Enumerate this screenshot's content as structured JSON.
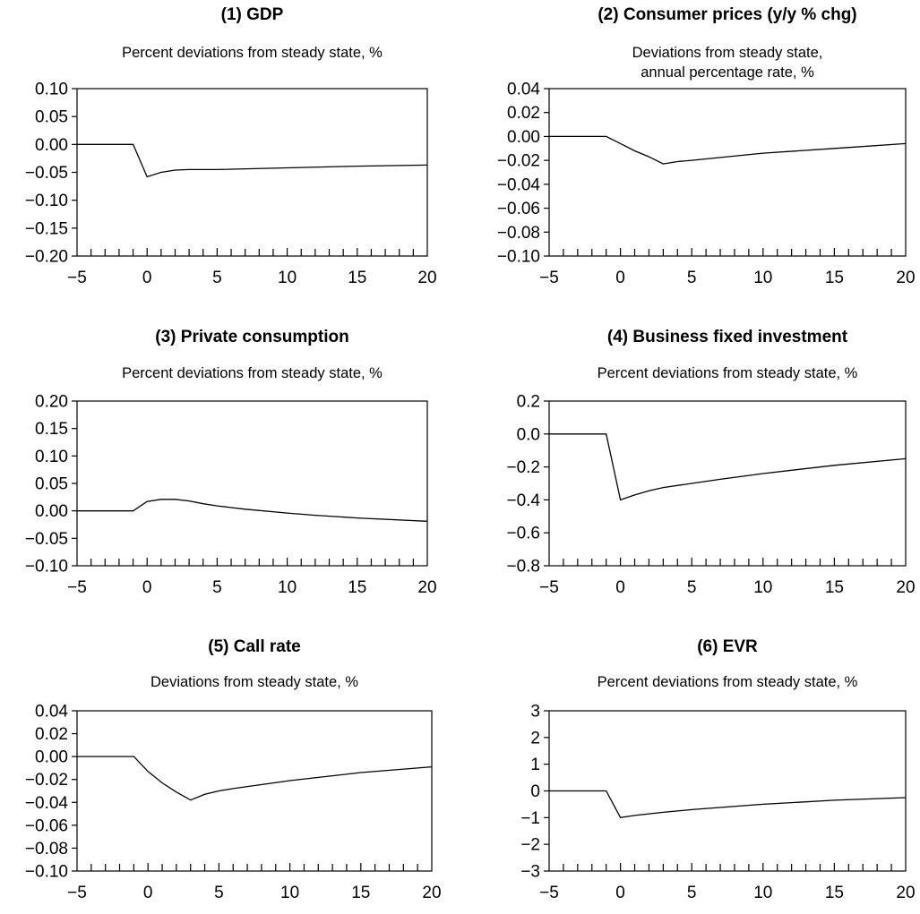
{
  "chart_data": [
    {
      "type": "line",
      "title": "(1) GDP",
      "subtitle": [
        "Percent deviations from steady state, %"
      ],
      "xlim": [
        -5,
        20
      ],
      "ylim": [
        -0.2,
        0.1
      ],
      "xticks": [
        -5,
        0,
        5,
        10,
        15,
        20
      ],
      "xtick_labels": [
        "−5",
        "0",
        "5",
        "10",
        "15",
        "20"
      ],
      "yticks": [
        0.1,
        0.05,
        0.0,
        -0.05,
        -0.1,
        -0.15,
        -0.2
      ],
      "ytick_labels": [
        "0.10",
        "0.05",
        "0.00",
        "−0.05",
        "−0.10",
        "−0.15",
        "−0.20"
      ],
      "x": [
        -5,
        -1,
        0,
        1,
        2,
        3,
        5,
        10,
        15,
        20
      ],
      "y": [
        0,
        0,
        -0.058,
        -0.05,
        -0.046,
        -0.045,
        -0.045,
        -0.042,
        -0.039,
        -0.037
      ]
    },
    {
      "type": "line",
      "title": "(2) Consumer prices (y/y % chg)",
      "subtitle": [
        "Deviations from steady state,",
        "annual percentage rate, %"
      ],
      "xlim": [
        -5,
        20
      ],
      "ylim": [
        -0.1,
        0.04
      ],
      "xticks": [
        -5,
        0,
        5,
        10,
        15,
        20
      ],
      "xtick_labels": [
        "−5",
        "0",
        "5",
        "10",
        "15",
        "20"
      ],
      "yticks": [
        0.04,
        0.02,
        0.0,
        -0.02,
        -0.04,
        -0.06,
        -0.08,
        -0.1
      ],
      "ytick_labels": [
        "0.04",
        "0.02",
        "0.00",
        "−0.02",
        "−0.04",
        "−0.06",
        "−0.08",
        "−0.10"
      ],
      "x": [
        -5,
        -1,
        0,
        1,
        2,
        3,
        4,
        5,
        10,
        15,
        20
      ],
      "y": [
        0,
        0,
        -0.006,
        -0.012,
        -0.017,
        -0.023,
        -0.021,
        -0.02,
        -0.014,
        -0.01,
        -0.006
      ]
    },
    {
      "type": "line",
      "title": "(3) Private consumption",
      "subtitle": [
        "Percent deviations from steady state, %"
      ],
      "xlim": [
        -5,
        20
      ],
      "ylim": [
        -0.1,
        0.2
      ],
      "xticks": [
        -5,
        0,
        5,
        10,
        15,
        20
      ],
      "xtick_labels": [
        "−5",
        "0",
        "5",
        "10",
        "15",
        "20"
      ],
      "yticks": [
        0.2,
        0.15,
        0.1,
        0.05,
        0.0,
        -0.05,
        -0.1
      ],
      "ytick_labels": [
        "0.20",
        "0.15",
        "0.10",
        "0.05",
        "0.00",
        "−0.05",
        "−0.10"
      ],
      "x": [
        -5,
        -1,
        0,
        1,
        2,
        3,
        4,
        5,
        7,
        10,
        12,
        15,
        20
      ],
      "y": [
        0,
        0,
        0.017,
        0.021,
        0.021,
        0.018,
        0.013,
        0.009,
        0.003,
        -0.004,
        -0.008,
        -0.013,
        -0.019
      ]
    },
    {
      "type": "line",
      "title": "(4) Business fixed investment",
      "subtitle": [
        "Percent deviations from steady state, %"
      ],
      "xlim": [
        -5,
        20
      ],
      "ylim": [
        -0.8,
        0.2
      ],
      "xticks": [
        -5,
        0,
        5,
        10,
        15,
        20
      ],
      "xtick_labels": [
        "−5",
        "0",
        "5",
        "10",
        "15",
        "20"
      ],
      "yticks": [
        0.2,
        0.0,
        -0.2,
        -0.4,
        -0.6,
        -0.8
      ],
      "ytick_labels": [
        "0.2",
        "0.0",
        "−0.2",
        "−0.4",
        "−0.6",
        "−0.8"
      ],
      "x": [
        -5,
        -1,
        0,
        1,
        2,
        3,
        5,
        7,
        10,
        15,
        20
      ],
      "y": [
        0,
        0,
        -0.4,
        -0.37,
        -0.345,
        -0.325,
        -0.3,
        -0.275,
        -0.24,
        -0.19,
        -0.15
      ]
    },
    {
      "type": "line",
      "title": "(5) Call rate",
      "subtitle": [
        "Deviations from steady state, %"
      ],
      "xlim": [
        -5,
        20
      ],
      "ylim": [
        -0.1,
        0.04
      ],
      "xticks": [
        -5,
        0,
        5,
        10,
        15,
        20
      ],
      "xtick_labels": [
        "−5",
        "0",
        "5",
        "10",
        "15",
        "20"
      ],
      "yticks": [
        0.04,
        0.02,
        0.0,
        -0.02,
        -0.04,
        -0.06,
        -0.08,
        -0.1
      ],
      "ytick_labels": [
        "0.04",
        "0.02",
        "0.00",
        "−0.02",
        "−0.04",
        "−0.06",
        "−0.08",
        "−0.10"
      ],
      "x": [
        -5,
        -1,
        0,
        1,
        2,
        3,
        4,
        5,
        6,
        10,
        15,
        20
      ],
      "y": [
        0,
        0,
        -0.013,
        -0.023,
        -0.031,
        -0.038,
        -0.033,
        -0.03,
        -0.028,
        -0.021,
        -0.014,
        -0.009
      ]
    },
    {
      "type": "line",
      "title": "(6) EVR",
      "subtitle": [
        "Percent deviations from steady state, %"
      ],
      "xlim": [
        -5,
        20
      ],
      "ylim": [
        -3,
        3
      ],
      "xticks": [
        -5,
        0,
        5,
        10,
        15,
        20
      ],
      "xtick_labels": [
        "−5",
        "0",
        "5",
        "10",
        "15",
        "20"
      ],
      "yticks": [
        3,
        2,
        1,
        0,
        -1,
        -2,
        -3
      ],
      "ytick_labels": [
        "3",
        "2",
        "1",
        "0",
        "−1",
        "−2",
        "−3"
      ],
      "x": [
        -5,
        -1,
        0,
        1,
        3,
        5,
        10,
        15,
        20
      ],
      "y": [
        0,
        0,
        -1.0,
        -0.92,
        -0.8,
        -0.7,
        -0.5,
        -0.35,
        -0.25
      ]
    }
  ]
}
